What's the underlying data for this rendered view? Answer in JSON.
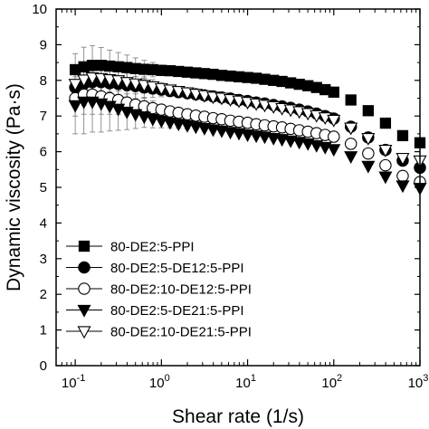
{
  "chart_data": {
    "type": "scatter",
    "title": "",
    "xlabel": "Shear rate (1/s)",
    "ylabel": "Dynamic viscosity (Pa·s)",
    "xscale": "log",
    "xlim": [
      0.06,
      1000
    ],
    "ylim": [
      0,
      10
    ],
    "grid": false,
    "legend_position": "bottom-left",
    "x_tick_labels": [
      {
        "base": "10",
        "exp": "-1",
        "value": 0.1
      },
      {
        "base": "10",
        "exp": "0",
        "value": 1
      },
      {
        "base": "10",
        "exp": "1",
        "value": 10
      },
      {
        "base": "10",
        "exp": "2",
        "value": 100
      },
      {
        "base": "10",
        "exp": "3",
        "value": 1000
      }
    ],
    "y_ticks": [
      "0",
      "1",
      "2",
      "3",
      "4",
      "5",
      "6",
      "7",
      "8",
      "9",
      "10"
    ],
    "x": [
      0.1,
      0.126,
      0.158,
      0.2,
      0.251,
      0.316,
      0.398,
      0.501,
      0.631,
      0.794,
      1.0,
      1.26,
      1.58,
      2.0,
      2.51,
      3.16,
      3.98,
      5.01,
      6.31,
      7.94,
      10.0,
      12.6,
      15.8,
      20.0,
      25.1,
      31.6,
      39.8,
      50.1,
      63.1,
      79.4,
      100,
      158,
      251,
      398,
      631,
      1000
    ],
    "series": [
      {
        "name": "80-DE2:5-PPI",
        "marker": "filled-square",
        "values": [
          8.3,
          8.38,
          8.42,
          8.42,
          8.4,
          8.38,
          8.36,
          8.33,
          8.31,
          8.3,
          8.28,
          8.27,
          8.25,
          8.23,
          8.21,
          8.19,
          8.17,
          8.14,
          8.12,
          8.1,
          8.08,
          8.06,
          8.03,
          8.0,
          7.97,
          7.93,
          7.89,
          7.85,
          7.8,
          7.74,
          7.67,
          7.45,
          7.15,
          6.8,
          6.45,
          6.25
        ],
        "error": [
          0.45,
          0.55,
          0.55,
          0.5,
          0.45,
          0.4,
          0.35,
          0.3,
          0.25,
          0.2,
          0.15,
          0.12,
          0.1,
          0.08,
          0.05,
          0.05,
          0.05,
          0.05,
          0.05,
          0.05,
          0.05,
          0.05,
          0.05,
          0.05,
          0.05,
          0.05,
          0.05,
          0.05,
          0.05,
          0.05,
          0.05,
          0.05,
          0.05,
          0.05,
          0.05,
          0.05
        ]
      },
      {
        "name": "80-DE2:5-DE12:5-PPI",
        "marker": "filled-circle",
        "values": [
          7.8,
          7.9,
          7.95,
          7.95,
          7.92,
          7.9,
          7.87,
          7.84,
          7.8,
          7.77,
          7.74,
          7.7,
          7.67,
          7.64,
          7.61,
          7.58,
          7.55,
          7.52,
          7.49,
          7.45,
          7.42,
          7.38,
          7.35,
          7.31,
          7.27,
          7.23,
          7.18,
          7.13,
          7.07,
          7.0,
          6.93,
          6.7,
          6.4,
          6.05,
          5.75,
          5.55
        ],
        "error": [
          0.5,
          0.6,
          0.6,
          0.55,
          0.5,
          0.45,
          0.4,
          0.35,
          0.3,
          0.25,
          0.2,
          0.15,
          0.12,
          0.1,
          0.08,
          0.05,
          0.05,
          0.05,
          0.05,
          0.05,
          0.05,
          0.05,
          0.05,
          0.05,
          0.05,
          0.05,
          0.05,
          0.05,
          0.05,
          0.05,
          0.05,
          0.05,
          0.05,
          0.05,
          0.05,
          0.05
        ]
      },
      {
        "name": "80-DE2:10-DE12:5-PPI",
        "marker": "open-circle",
        "values": [
          7.5,
          7.6,
          7.6,
          7.55,
          7.5,
          7.45,
          7.38,
          7.32,
          7.27,
          7.22,
          7.18,
          7.13,
          7.09,
          7.05,
          7.01,
          6.98,
          6.94,
          6.91,
          6.87,
          6.84,
          6.81,
          6.77,
          6.74,
          6.71,
          6.68,
          6.64,
          6.6,
          6.56,
          6.52,
          6.47,
          6.42,
          6.22,
          5.95,
          5.62,
          5.32,
          5.15
        ],
        "error": [
          0.5,
          0.55,
          0.55,
          0.5,
          0.45,
          0.4,
          0.35,
          0.3,
          0.25,
          0.2,
          0.15,
          0.12,
          0.1,
          0.08,
          0.05,
          0.05,
          0.05,
          0.05,
          0.05,
          0.05,
          0.05,
          0.05,
          0.05,
          0.05,
          0.05,
          0.05,
          0.05,
          0.05,
          0.05,
          0.05,
          0.05,
          0.05,
          0.05,
          0.05,
          0.05,
          0.05
        ]
      },
      {
        "name": "80-DE2:5-DE21:5-PPI",
        "marker": "filled-triangle-down",
        "values": [
          7.3,
          7.4,
          7.4,
          7.35,
          7.28,
          7.2,
          7.12,
          7.05,
          6.98,
          6.92,
          6.87,
          6.82,
          6.78,
          6.74,
          6.7,
          6.66,
          6.62,
          6.59,
          6.55,
          6.52,
          6.48,
          6.45,
          6.42,
          6.38,
          6.35,
          6.31,
          6.27,
          6.23,
          6.18,
          6.13,
          6.07,
          5.87,
          5.6,
          5.3,
          5.05,
          4.98
        ],
        "error": [
          0.8,
          0.9,
          0.85,
          0.8,
          0.7,
          0.6,
          0.5,
          0.4,
          0.3,
          0.25,
          0.2,
          0.15,
          0.12,
          0.1,
          0.08,
          0.05,
          0.05,
          0.05,
          0.05,
          0.05,
          0.05,
          0.05,
          0.05,
          0.05,
          0.05,
          0.05,
          0.05,
          0.05,
          0.05,
          0.05,
          0.05,
          0.05,
          0.05,
          0.05,
          0.05,
          0.05
        ]
      },
      {
        "name": "80-DE2:10-DE21:5-PPI",
        "marker": "open-triangle-down",
        "values": [
          7.9,
          8.02,
          8.08,
          8.06,
          8.03,
          8.0,
          7.95,
          7.91,
          7.87,
          7.83,
          7.78,
          7.74,
          7.7,
          7.66,
          7.62,
          7.58,
          7.54,
          7.51,
          7.47,
          7.43,
          7.39,
          7.35,
          7.31,
          7.27,
          7.22,
          7.18,
          7.13,
          7.08,
          7.02,
          6.96,
          6.89,
          6.67,
          6.38,
          6.05,
          5.82,
          5.75
        ],
        "error": [
          0.4,
          0.45,
          0.45,
          0.4,
          0.35,
          0.3,
          0.25,
          0.2,
          0.15,
          0.12,
          0.1,
          0.08,
          0.05,
          0.05,
          0.05,
          0.05,
          0.05,
          0.05,
          0.05,
          0.05,
          0.05,
          0.05,
          0.05,
          0.05,
          0.05,
          0.05,
          0.05,
          0.05,
          0.05,
          0.05,
          0.05,
          0.05,
          0.05,
          0.05,
          0.05,
          0.05
        ]
      }
    ]
  }
}
